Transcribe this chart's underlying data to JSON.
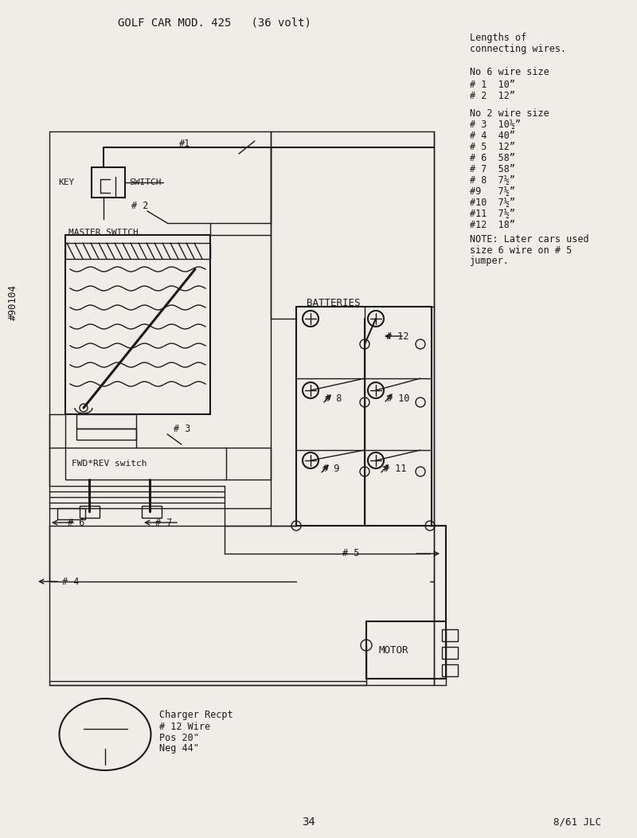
{
  "title": "GOLF CAR MOD. 425   (36 volt)",
  "page_num": "34",
  "date_code": "8/61 JLC",
  "doc_num": "#90104",
  "bg_color": "#f0ede8",
  "line_color": "#1a1a1a",
  "legend_title": "Lengths of\nconnecting wires.",
  "legend_lines": [
    "No 6 wire size",
    "# 1  10”",
    "# 2  12”",
    "",
    "No 2 wire size",
    "# 3  10½”",
    "# 4  40”",
    "# 5  12”",
    "# 6  58”",
    "# 7  58”",
    "# 8  7½”",
    "#9   7½”",
    "#10  7½”",
    "#11  7½”",
    "#12  18”",
    "NOTE: Later cars used",
    "size 6 wire on # 5",
    "jumper."
  ]
}
